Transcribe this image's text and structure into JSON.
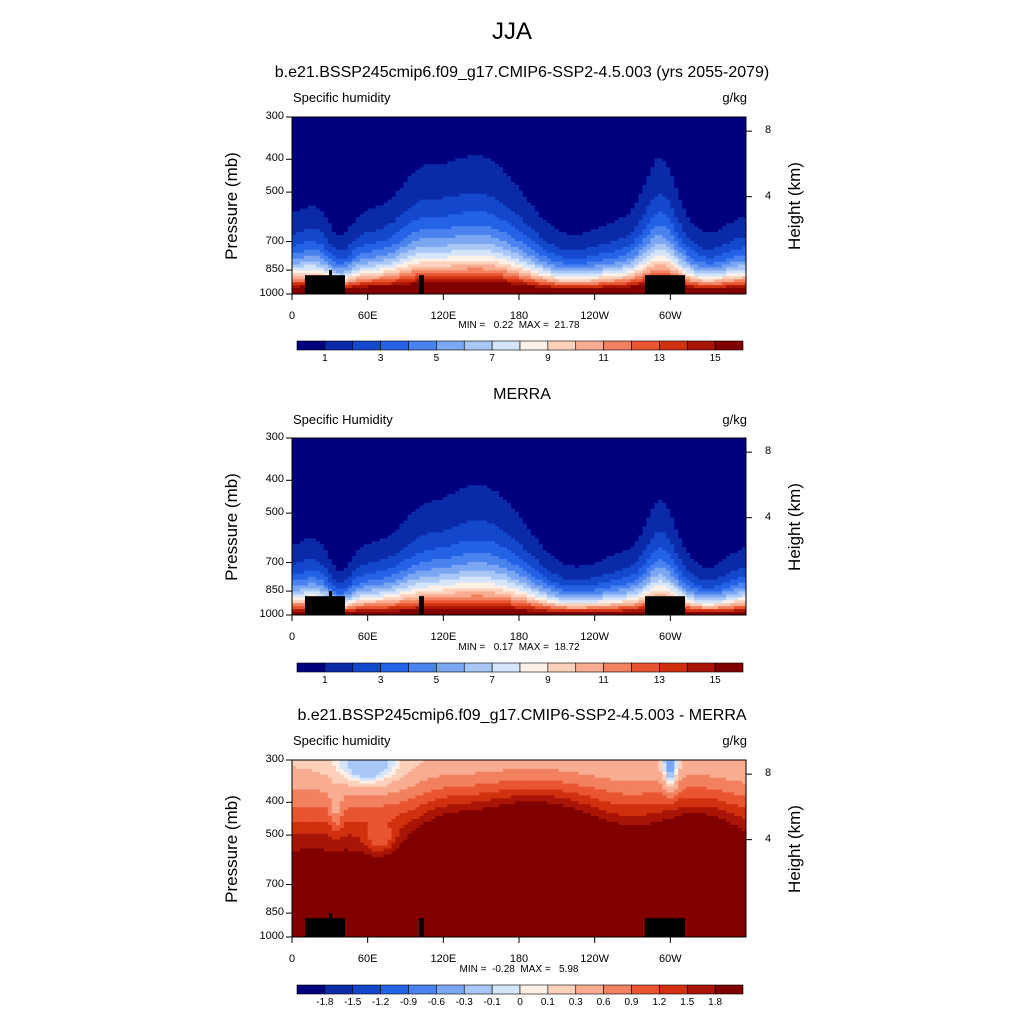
{
  "title": "JJA",
  "panels": [
    {
      "title": "b.e21.BSSP245cmip6.f09_g17.CMIP6-SSP2-4.5.003 (yrs 2055-2079)",
      "variable": "Specific humidity",
      "units": "g/kg",
      "min_max": "MIN =   0.22  MAX =  21.78",
      "field": "model"
    },
    {
      "title": "MERRA",
      "variable": "Specific Humidity",
      "units": "g/kg",
      "min_max": "MIN =   0.17  MAX =  18.72",
      "field": "obs"
    },
    {
      "title": "b.e21.BSSP245cmip6.f09_g17.CMIP6-SSP2-4.5.003 - MERRA",
      "variable": "Specific humidity",
      "units": "g/kg",
      "min_max": "MIN =  -0.28  MAX =   5.98",
      "field": "diff"
    }
  ],
  "axes": {
    "ylabel": "Pressure (mb)",
    "y2label": "Height (km)",
    "pressure_ticks": [
      "300",
      "400",
      "500",
      "700",
      "850",
      "1000"
    ],
    "height_ticks": [
      "8",
      "4"
    ],
    "xticks": [
      "0",
      "60E",
      "120E",
      "180",
      "120W",
      "60W"
    ]
  },
  "colorbars": {
    "abs": {
      "labels": [
        "1",
        "3",
        "5",
        "7",
        "9",
        "11",
        "13",
        "15"
      ],
      "colors": [
        "#00007f",
        "#0a2aa8",
        "#1448cc",
        "#2462e6",
        "#4a82ef",
        "#7aa6f2",
        "#a8c6f6",
        "#d4e4fb",
        "#fdf0e6",
        "#fcd0bb",
        "#f8ac91",
        "#f28160",
        "#e85530",
        "#d1300f",
        "#a81406",
        "#800000"
      ]
    },
    "diff": {
      "labels": [
        "-1.8",
        "-1.5",
        "-1.2",
        "-0.9",
        "-0.6",
        "-0.3",
        "-0.1",
        "0",
        "0.1",
        "0.3",
        "0.6",
        "0.9",
        "1.2",
        "1.5",
        "1.8"
      ],
      "colors": [
        "#00007f",
        "#0a2aa8",
        "#1448cc",
        "#2462e6",
        "#4a82ef",
        "#7aa6f2",
        "#a8c6f6",
        "#d4e4fb",
        "#fdf0e6",
        "#fcd0bb",
        "#f8ac91",
        "#f28160",
        "#e85530",
        "#d1300f",
        "#a81406",
        "#800000"
      ]
    }
  },
  "chart_data": [
    {
      "type": "heatmap",
      "title": "b.e21.BSSP245cmip6.f09_g17.CMIP6-SSP2-4.5.003 (yrs 2055-2079)",
      "xlabel": "",
      "ylabel": "Pressure (mb)",
      "x_range": [
        0,
        360
      ],
      "y_range": [
        1000,
        300
      ],
      "levels": [
        0,
        1,
        2,
        3,
        4,
        5,
        6,
        7,
        8,
        9,
        10,
        11,
        12,
        13,
        14,
        15
      ],
      "min": 0.22,
      "max": 21.78
    },
    {
      "type": "heatmap",
      "title": "MERRA",
      "xlabel": "",
      "ylabel": "Pressure (mb)",
      "x_range": [
        0,
        360
      ],
      "y_range": [
        1000,
        300
      ],
      "levels": [
        0,
        1,
        2,
        3,
        4,
        5,
        6,
        7,
        8,
        9,
        10,
        11,
        12,
        13,
        14,
        15
      ],
      "min": 0.17,
      "max": 18.72
    },
    {
      "type": "heatmap",
      "title": "b.e21.BSSP245cmip6.f09_g17.CMIP6-SSP2-4.5.003 - MERRA",
      "xlabel": "",
      "ylabel": "Pressure (mb)",
      "x_range": [
        0,
        360
      ],
      "y_range": [
        1000,
        300
      ],
      "levels": [
        -1.8,
        -1.5,
        -1.2,
        -0.9,
        -0.6,
        -0.3,
        -0.1,
        0,
        0.1,
        0.3,
        0.6,
        0.9,
        1.2,
        1.5,
        1.8
      ],
      "min": -0.28,
      "max": 5.98
    }
  ]
}
